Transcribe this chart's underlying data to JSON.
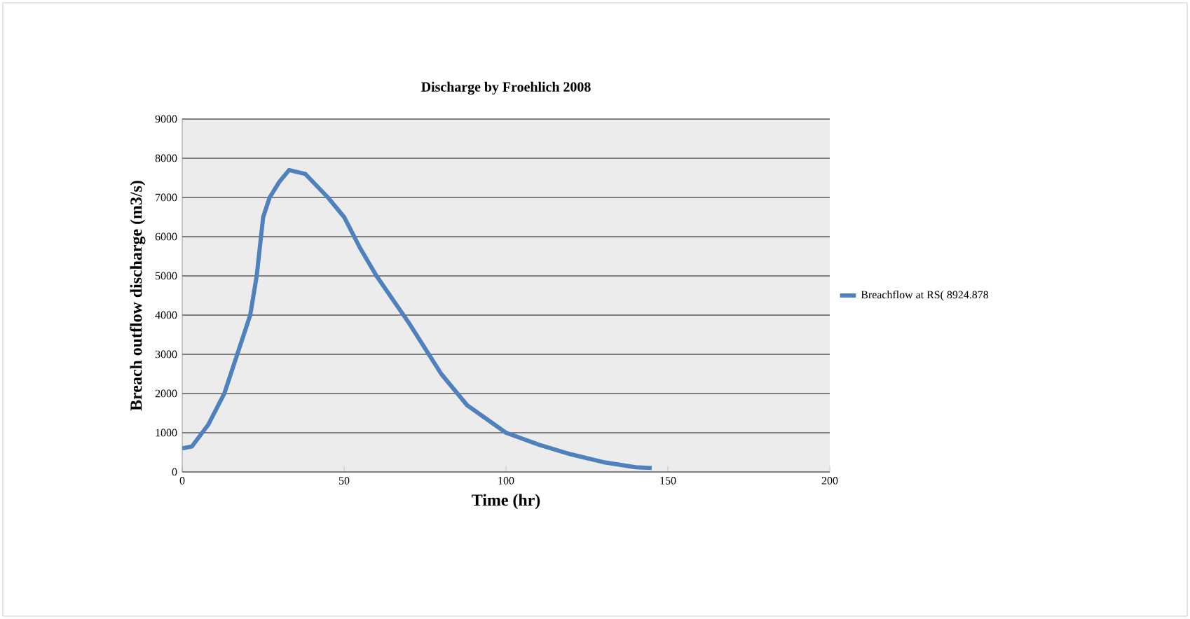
{
  "chart_data": {
    "type": "line",
    "title": "Discharge by Froehlich  2008",
    "xlabel": "Time (hr)",
    "ylabel": "Breach outflow discharge  (m3/s)",
    "xlim": [
      0,
      200
    ],
    "xticks": [
      0,
      50,
      100,
      150,
      200
    ],
    "ylim": [
      0,
      9000
    ],
    "yticks": [
      0,
      1000,
      2000,
      3000,
      4000,
      5000,
      6000,
      7000,
      8000,
      9000
    ],
    "grid": "y",
    "legend": "right",
    "series": [
      {
        "name": "Breachflow at RS( 8924.878",
        "color": "#4f81bd",
        "x": [
          0,
          3,
          8,
          13,
          17,
          21,
          23,
          25,
          27,
          30,
          33,
          38,
          45,
          50,
          55,
          60,
          70,
          80,
          88,
          100,
          110,
          120,
          130,
          140,
          145
        ],
        "values": [
          600,
          650,
          1200,
          2000,
          3000,
          4000,
          5000,
          6500,
          7000,
          7400,
          7700,
          7600,
          7000,
          6500,
          5700,
          5000,
          3800,
          2500,
          1700,
          1000,
          700,
          450,
          250,
          120,
          100
        ]
      }
    ]
  }
}
